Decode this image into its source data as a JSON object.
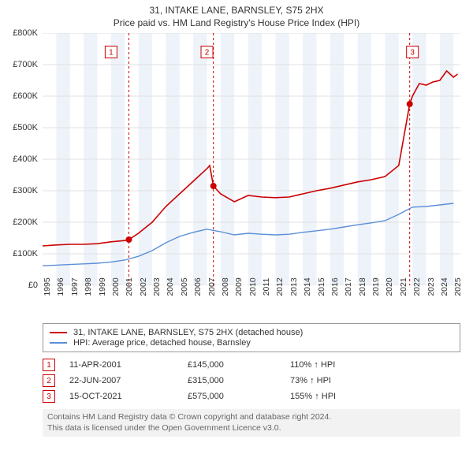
{
  "title": "31, INTAKE LANE, BARNSLEY, S75 2HX",
  "subtitle": "Price paid vs. HM Land Registry's House Price Index (HPI)",
  "chart": {
    "type": "line",
    "background_color": "#ffffff",
    "grid_color": "#e0e0e0",
    "band_color": "#eef3fa",
    "xlim": [
      1995,
      2025.5
    ],
    "ylim": [
      0,
      800
    ],
    "ytick_prefix": "£",
    "ytick_suffix": "K",
    "yticks": [
      0,
      100,
      200,
      300,
      400,
      500,
      600,
      700,
      800
    ],
    "ytick_labels": [
      "£0",
      "£100K",
      "£200K",
      "£300K",
      "£400K",
      "£500K",
      "£600K",
      "£700K",
      "£800K"
    ],
    "xticks": [
      1995,
      1996,
      1997,
      1998,
      1999,
      2000,
      2001,
      2002,
      2003,
      2004,
      2005,
      2006,
      2007,
      2008,
      2009,
      2010,
      2011,
      2012,
      2013,
      2014,
      2015,
      2016,
      2017,
      2018,
      2019,
      2020,
      2021,
      2022,
      2023,
      2024,
      2025
    ],
    "band_years": [
      1996,
      1998,
      2000,
      2002,
      2004,
      2006,
      2008,
      2010,
      2012,
      2014,
      2016,
      2018,
      2020,
      2022,
      2024
    ],
    "series_property": {
      "label": "31, INTAKE LANE, BARNSLEY, S75 2HX (detached house)",
      "color": "#cc0000",
      "line_width": 1.6,
      "points": [
        [
          1995,
          125
        ],
        [
          1996,
          128
        ],
        [
          1997,
          130
        ],
        [
          1998,
          130
        ],
        [
          1999,
          132
        ],
        [
          2000,
          138
        ],
        [
          2001,
          142
        ],
        [
          2001.3,
          145
        ],
        [
          2002,
          165
        ],
        [
          2003,
          200
        ],
        [
          2004,
          250
        ],
        [
          2005,
          290
        ],
        [
          2006,
          330
        ],
        [
          2007,
          370
        ],
        [
          2007.2,
          380
        ],
        [
          2007.47,
          315
        ],
        [
          2008,
          290
        ],
        [
          2009,
          265
        ],
        [
          2010,
          285
        ],
        [
          2011,
          280
        ],
        [
          2012,
          278
        ],
        [
          2013,
          280
        ],
        [
          2014,
          290
        ],
        [
          2015,
          300
        ],
        [
          2016,
          308
        ],
        [
          2017,
          318
        ],
        [
          2018,
          328
        ],
        [
          2019,
          335
        ],
        [
          2020,
          345
        ],
        [
          2021,
          380
        ],
        [
          2021.8,
          575
        ],
        [
          2022,
          600
        ],
        [
          2022.5,
          640
        ],
        [
          2023,
          635
        ],
        [
          2023.5,
          645
        ],
        [
          2024,
          650
        ],
        [
          2024.5,
          680
        ],
        [
          2025,
          660
        ],
        [
          2025.3,
          670
        ]
      ]
    },
    "series_hpi": {
      "label": "HPI: Average price, detached house, Barnsley",
      "color": "#5b8fd6",
      "line_width": 1.4,
      "points": [
        [
          1995,
          62
        ],
        [
          1996,
          64
        ],
        [
          1997,
          66
        ],
        [
          1998,
          68
        ],
        [
          1999,
          70
        ],
        [
          2000,
          74
        ],
        [
          2001,
          80
        ],
        [
          2002,
          92
        ],
        [
          2003,
          110
        ],
        [
          2004,
          135
        ],
        [
          2005,
          155
        ],
        [
          2006,
          168
        ],
        [
          2007,
          178
        ],
        [
          2008,
          170
        ],
        [
          2009,
          160
        ],
        [
          2010,
          165
        ],
        [
          2011,
          162
        ],
        [
          2012,
          160
        ],
        [
          2013,
          162
        ],
        [
          2014,
          168
        ],
        [
          2015,
          173
        ],
        [
          2016,
          178
        ],
        [
          2017,
          185
        ],
        [
          2018,
          192
        ],
        [
          2019,
          198
        ],
        [
          2020,
          205
        ],
        [
          2021,
          225
        ],
        [
          2022,
          248
        ],
        [
          2023,
          250
        ],
        [
          2024,
          255
        ],
        [
          2025,
          260
        ]
      ]
    },
    "markers": [
      {
        "n": 1,
        "x": 2001.3,
        "y": 145,
        "color": "#cc0000",
        "label_x": 2000,
        "label_y": 740
      },
      {
        "n": 2,
        "x": 2007.47,
        "y": 315,
        "color": "#cc0000",
        "label_x": 2007,
        "label_y": 740
      },
      {
        "n": 3,
        "x": 2021.8,
        "y": 575,
        "color": "#cc0000",
        "label_x": 2022,
        "label_y": 740
      }
    ],
    "marker_line_dash": "3,3",
    "marker_box_border": "#cc0000",
    "marker_box_fill": "#ffffff",
    "marker_box_size": 15,
    "marker_radius": 4,
    "label_fontsize": 11,
    "tick_fontsize": 10.5
  },
  "legend": {
    "border_color": "#999999",
    "items": [
      {
        "color": "#cc0000",
        "label": "31, INTAKE LANE, BARNSLEY, S75 2HX (detached house)"
      },
      {
        "color": "#5b8fd6",
        "label": "HPI: Average price, detached house, Barnsley"
      }
    ]
  },
  "events": [
    {
      "n": "1",
      "date": "11-APR-2001",
      "price": "£145,000",
      "hpi": "110% ↑ HPI"
    },
    {
      "n": "2",
      "date": "22-JUN-2007",
      "price": "£315,000",
      "hpi": "73% ↑ HPI"
    },
    {
      "n": "3",
      "date": "15-OCT-2021",
      "price": "£575,000",
      "hpi": "155% ↑ HPI"
    }
  ],
  "event_box_border": "#cc0000",
  "footer": {
    "line1": "Contains HM Land Registry data © Crown copyright and database right 2024.",
    "line2": "This data is licensed under the Open Government Licence v3.0.",
    "background": "#f2f2f2",
    "text_color": "#666666"
  }
}
